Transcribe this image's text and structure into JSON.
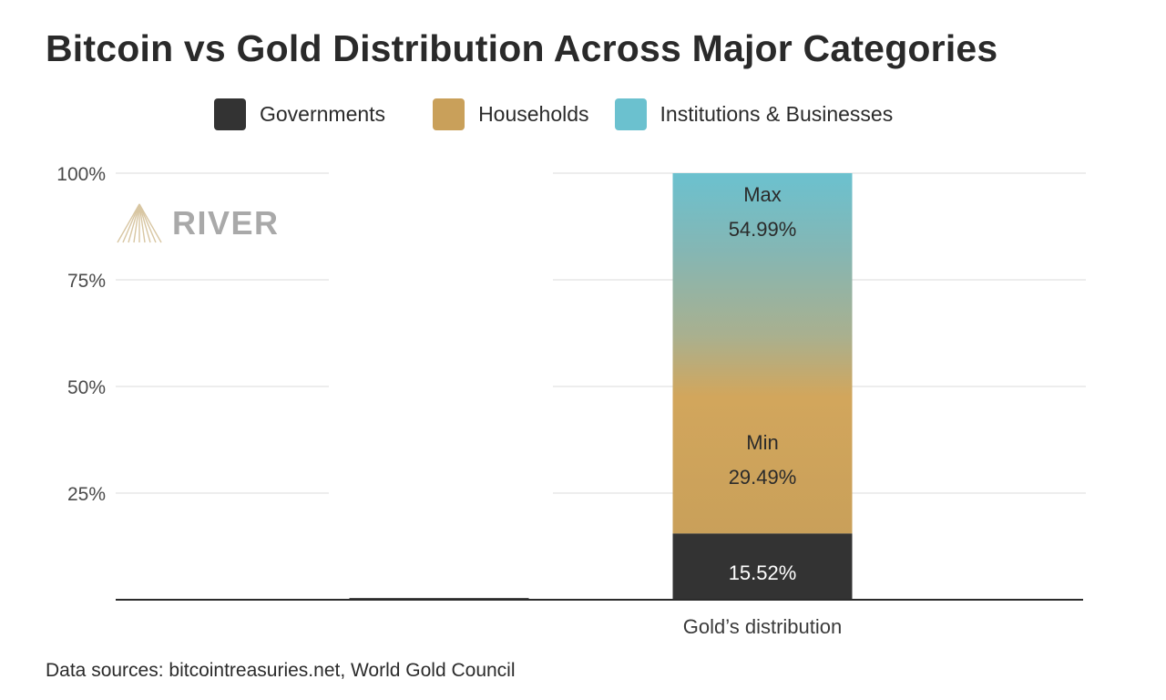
{
  "title": "Bitcoin vs Gold Distribution Across Major Categories",
  "legend": [
    {
      "label": "Governments",
      "color": "#333333"
    },
    {
      "label": "Households",
      "color": "#c9a05a"
    },
    {
      "label": "Institutions & Businesses",
      "color": "#6bc1cf"
    }
  ],
  "watermark": {
    "text": "RIVER",
    "icon": "river-mountain-logo"
  },
  "source": "Data sources: bitcointreasuries.net, World Gold Council",
  "chart_data": {
    "type": "bar",
    "stacked": true,
    "categories": [
      "",
      "Gold’s distribution"
    ],
    "series": [
      {
        "name": "Governments",
        "color": "#333333",
        "values": [
          0.4,
          15.52
        ]
      },
      {
        "name": "Households",
        "color": "#c9a05a",
        "values": [
          0,
          29.49
        ]
      },
      {
        "name": "Institutions & Businesses",
        "color": "#6bc1cf",
        "values": [
          0,
          54.99
        ]
      }
    ],
    "data_labels": [
      {
        "category": 1,
        "series": 0,
        "text": "15.52%"
      },
      {
        "category": 1,
        "series": 1,
        "text": "Min\n29.49%"
      },
      {
        "category": 1,
        "series": 2,
        "text": "Max\n54.99%"
      }
    ],
    "yticks": [
      "25%",
      "50%",
      "75%",
      "100%"
    ],
    "ytick_values": [
      25,
      50,
      75,
      100
    ],
    "ylim": [
      0,
      100
    ],
    "grid": true,
    "legend_position": "top"
  }
}
